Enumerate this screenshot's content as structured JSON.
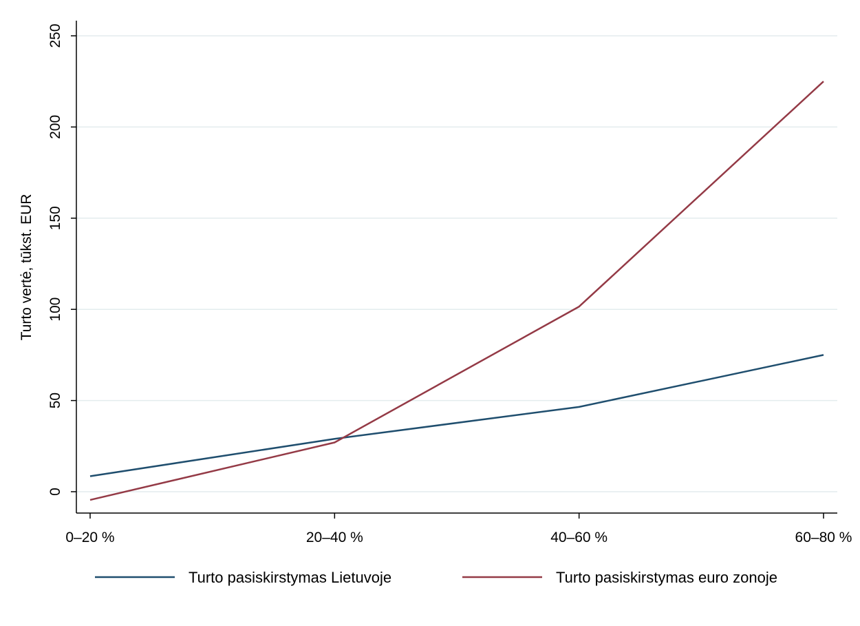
{
  "chart_data": {
    "type": "line",
    "title": "",
    "xlabel": "",
    "ylabel": "Turto vertė, tūkst. EUR",
    "categories": [
      "0–20 %",
      "20–40 %",
      "40–60 %",
      "60–80 %"
    ],
    "ylim": [
      -11,
      260
    ],
    "yticks": [
      0,
      50,
      100,
      150,
      200,
      250
    ],
    "grid": true,
    "legend_position": "bottom",
    "series": [
      {
        "name": "Turto pasiskirstymas Lietuvoje",
        "color": "#1f4e6e",
        "values": [
          8.5,
          29,
          46.5,
          75
        ]
      },
      {
        "name": "Turto pasiskirstymas euro zonoje",
        "color": "#943a46",
        "values": [
          -4.5,
          27,
          101.5,
          225
        ]
      }
    ]
  }
}
